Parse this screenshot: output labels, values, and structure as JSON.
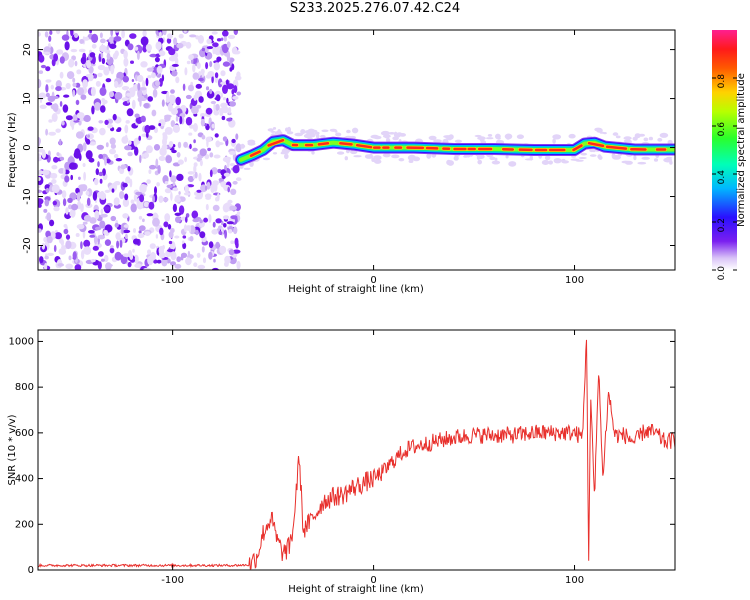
{
  "title": "S233.2025.276.07.42.C24",
  "colors": {
    "snr_line": "#e8302c",
    "noise_purple": "#7a1ff0",
    "axis": "#000000"
  },
  "chart_data": [
    {
      "type": "heatmap",
      "xlabel": "Height of straight line (km)",
      "ylabel": "Frequency (Hz)",
      "xlim": [
        -167,
        150
      ],
      "ylim": [
        -25,
        24
      ],
      "xticks": [
        "-100",
        "0",
        "100"
      ],
      "xtick_values": [
        -100,
        0,
        100
      ],
      "yticks": [
        "-20",
        "-10",
        "0",
        "10",
        "20"
      ],
      "ytick_values": [
        -20,
        -10,
        0,
        10,
        20
      ],
      "noise_region_x": [
        -167,
        -67
      ],
      "signal_x_start": -67,
      "signal_trace": [
        {
          "x": -66,
          "f": -2.5
        },
        {
          "x": -60,
          "f": -1.5
        },
        {
          "x": -55,
          "f": -0.5
        },
        {
          "x": -50,
          "f": 1.2
        },
        {
          "x": -45,
          "f": 1.5
        },
        {
          "x": -40,
          "f": 0.5
        },
        {
          "x": -30,
          "f": 0.5
        },
        {
          "x": -20,
          "f": 1.0
        },
        {
          "x": -10,
          "f": 0.6
        },
        {
          "x": 0,
          "f": 0.0
        },
        {
          "x": 20,
          "f": 0.0
        },
        {
          "x": 40,
          "f": -0.3
        },
        {
          "x": 60,
          "f": -0.3
        },
        {
          "x": 80,
          "f": -0.5
        },
        {
          "x": 100,
          "f": -0.5
        },
        {
          "x": 105,
          "f": 0.8
        },
        {
          "x": 110,
          "f": 1.0
        },
        {
          "x": 115,
          "f": 0.2
        },
        {
          "x": 130,
          "f": -0.4
        },
        {
          "x": 150,
          "f": -0.4
        }
      ],
      "colorbar": {
        "label": "Normalized spectral amplitude",
        "range": [
          0.0,
          1.0
        ],
        "ticks": [
          "0.0",
          "0.2",
          "0.4",
          "0.6",
          "0.8"
        ],
        "tick_values": [
          0.0,
          0.2,
          0.4,
          0.6,
          0.8
        ]
      }
    },
    {
      "type": "line",
      "xlabel": "Height of straight line (km)",
      "ylabel": "SNR (10 * v/v)",
      "xlim": [
        -167,
        150
      ],
      "ylim": [
        0,
        1050
      ],
      "xticks": [
        "-100",
        "0",
        "100"
      ],
      "xtick_values": [
        -100,
        0,
        100
      ],
      "yticks": [
        "0",
        "200",
        "400",
        "600",
        "800",
        "1000"
      ],
      "ytick_values": [
        0,
        200,
        400,
        600,
        800,
        1000
      ],
      "series": [
        {
          "name": "SNR",
          "points": [
            [
              -167,
              20
            ],
            [
              -100,
              20
            ],
            [
              -70,
              20
            ],
            [
              -62,
              22
            ],
            [
              -58,
              60
            ],
            [
              -55,
              160
            ],
            [
              -51,
              230
            ],
            [
              -48,
              130
            ],
            [
              -45,
              70
            ],
            [
              -42,
              100
            ],
            [
              -40,
              180
            ],
            [
              -37,
              500
            ],
            [
              -35,
              170
            ],
            [
              -30,
              230
            ],
            [
              -25,
              300
            ],
            [
              -20,
              320
            ],
            [
              -15,
              330
            ],
            [
              -10,
              360
            ],
            [
              -5,
              380
            ],
            [
              0,
              400
            ],
            [
              5,
              430
            ],
            [
              10,
              480
            ],
            [
              15,
              520
            ],
            [
              20,
              540
            ],
            [
              30,
              560
            ],
            [
              40,
              580
            ],
            [
              50,
              590
            ],
            [
              60,
              590
            ],
            [
              70,
              590
            ],
            [
              80,
              600
            ],
            [
              90,
              600
            ],
            [
              100,
              600
            ],
            [
              104,
              580
            ],
            [
              106,
              1040
            ],
            [
              107,
              50
            ],
            [
              108,
              760
            ],
            [
              110,
              300
            ],
            [
              112,
              900
            ],
            [
              114,
              400
            ],
            [
              117,
              780
            ],
            [
              120,
              590
            ],
            [
              125,
              590
            ],
            [
              130,
              560
            ],
            [
              135,
              610
            ],
            [
              140,
              600
            ],
            [
              145,
              560
            ],
            [
              150,
              570
            ]
          ]
        }
      ]
    }
  ]
}
